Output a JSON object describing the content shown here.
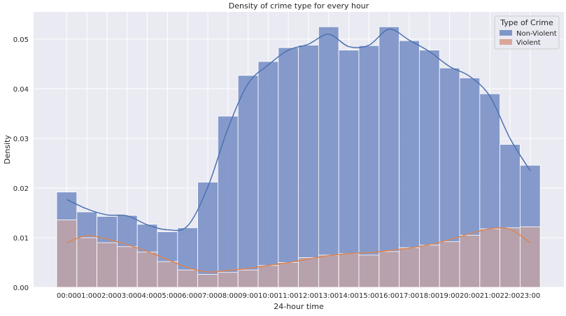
{
  "chart_data": {
    "type": "bar",
    "title": "Density of crime type for every hour",
    "xlabel": "24-hour time",
    "ylabel": "Density",
    "ylim": [
      0,
      0.0555
    ],
    "grid": true,
    "legend_position": "top-right",
    "legend_title": "Type of Crime",
    "yticks": [
      "0.00",
      "0.01",
      "0.02",
      "0.03",
      "0.04",
      "0.05"
    ],
    "categories": [
      "00:00",
      "01:00",
      "02:00",
      "03:00",
      "04:00",
      "05:00",
      "06:00",
      "07:00",
      "08:00",
      "09:00",
      "10:00",
      "11:00",
      "12:00",
      "13:00",
      "14:00",
      "15:00",
      "16:00",
      "17:00",
      "18:00",
      "19:00",
      "20:00",
      "21:00",
      "22:00",
      "23:00"
    ],
    "series": [
      {
        "name": "Non-Violent",
        "color": "#7f96c8",
        "line_color": "#4c72b0",
        "values": [
          0.0192,
          0.0152,
          0.0143,
          0.0145,
          0.0127,
          0.0112,
          0.012,
          0.0212,
          0.0345,
          0.0427,
          0.0455,
          0.0483,
          0.0488,
          0.0525,
          0.0478,
          0.0487,
          0.0525,
          0.0497,
          0.0478,
          0.0442,
          0.0422,
          0.039,
          0.0288,
          0.0246
        ],
        "kde": [
          0.0177,
          0.0158,
          0.0146,
          0.0144,
          0.0126,
          0.0116,
          0.0124,
          0.0202,
          0.032,
          0.041,
          0.0448,
          0.0478,
          0.049,
          0.051,
          0.0485,
          0.0488,
          0.052,
          0.0498,
          0.0475,
          0.0445,
          0.0425,
          0.0385,
          0.03,
          0.0235
        ]
      },
      {
        "name": "Violent",
        "color": "#d9a697",
        "line_color": "#dd8452",
        "values": [
          0.0136,
          0.01,
          0.009,
          0.0082,
          0.0071,
          0.0052,
          0.0035,
          0.0026,
          0.003,
          0.0035,
          0.0044,
          0.005,
          0.006,
          0.0065,
          0.0068,
          0.0065,
          0.0072,
          0.008,
          0.0085,
          0.0092,
          0.0105,
          0.0118,
          0.012,
          0.0122
        ],
        "kde": [
          0.009,
          0.0104,
          0.0097,
          0.0086,
          0.0072,
          0.0056,
          0.004,
          0.0031,
          0.0034,
          0.0038,
          0.0044,
          0.005,
          0.0057,
          0.0064,
          0.0068,
          0.007,
          0.0074,
          0.0079,
          0.0086,
          0.0096,
          0.0108,
          0.0118,
          0.0117,
          0.009
        ]
      }
    ]
  }
}
